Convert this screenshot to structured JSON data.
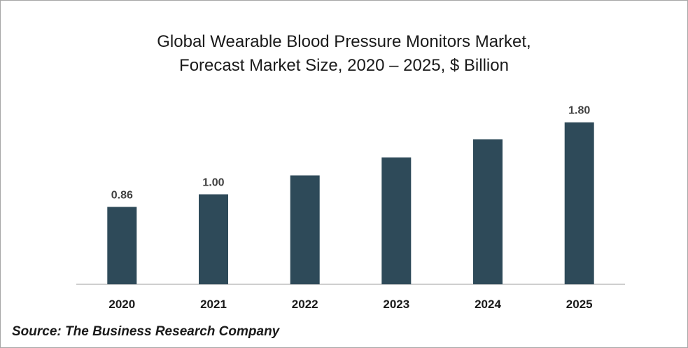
{
  "chart_data": {
    "type": "bar",
    "title_lines": [
      "Global Wearable Blood Pressure Monitors Market,",
      "Forecast Market Size, 2020 – 2025, $ Billion"
    ],
    "categories": [
      "2020",
      "2021",
      "2022",
      "2023",
      "2024",
      "2025"
    ],
    "values": [
      0.86,
      1.0,
      1.21,
      1.41,
      1.61,
      1.8
    ],
    "data_labels": [
      "0.86",
      "1.00",
      "",
      "",
      "",
      "1.80"
    ],
    "xlabel": "",
    "ylabel": "",
    "ylim": [
      0,
      2.0
    ],
    "grid": false,
    "legend": "none",
    "bar_color": "#2e4a59",
    "axis_color": "#bfbfbf"
  },
  "source": "Source: The Business Research Company"
}
